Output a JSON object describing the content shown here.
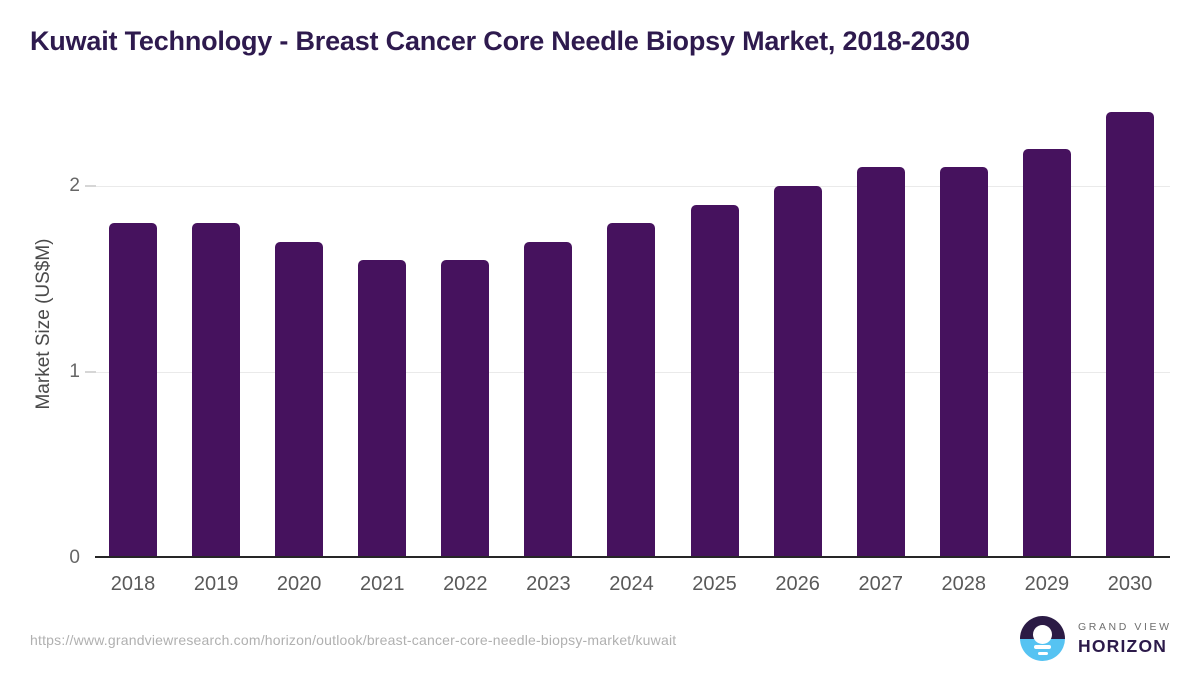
{
  "page": {
    "title": "Kuwait Technology - Breast Cancer Core Needle Biopsy Market, 2018-2030"
  },
  "chart_data": {
    "type": "bar",
    "title": "Kuwait Technology - Breast Cancer Core Needle Biopsy Market, 2018-2030",
    "categories": [
      "2018",
      "2019",
      "2020",
      "2021",
      "2022",
      "2023",
      "2024",
      "2025",
      "2026",
      "2027",
      "2028",
      "2029",
      "2030"
    ],
    "values": [
      1.8,
      1.8,
      1.7,
      1.6,
      1.6,
      1.7,
      1.8,
      1.9,
      2.0,
      2.1,
      2.1,
      2.2,
      2.4
    ],
    "xlabel": "",
    "ylabel": "Market Size (US$M)",
    "yticks": [
      0,
      1,
      2
    ],
    "ylim": [
      0,
      2.5
    ],
    "grid": true,
    "legend": false,
    "bar_color": "#46125e"
  },
  "footer": {
    "source_url": "https://www.grandviewresearch.com/horizon/outlook/breast-cancer-core-needle-biopsy-market/kuwait",
    "logo": {
      "line1": "GRAND VIEW",
      "line2": "HORIZON"
    }
  },
  "colors": {
    "title_text": "#2e1a4e",
    "bar": "#46125e",
    "axis_tick_text": "#666666",
    "x_label_text": "#595959",
    "y_axis_title_text": "#4a4a4a",
    "gridline": "#eaeaea",
    "axis_line": "#262626",
    "url_text": "#b0b0b0",
    "logo_navy": "#2b1b45",
    "logo_blue": "#56c3f2"
  }
}
